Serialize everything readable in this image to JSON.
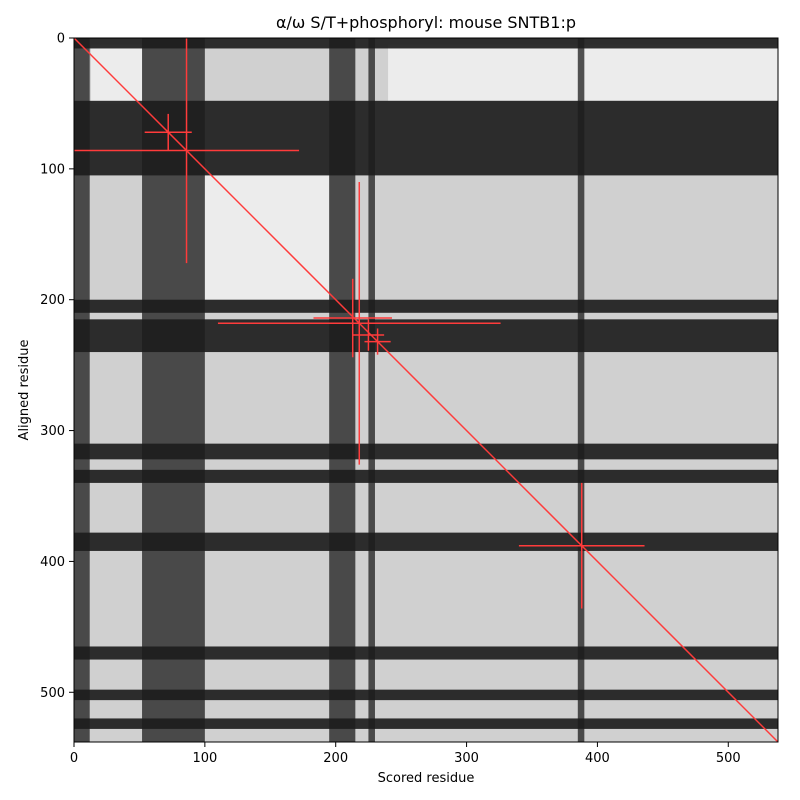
{
  "chart_data": {
    "type": "heatmap",
    "title": "α/ω S/T+phosphoryl: mouse SNTB1:p",
    "xlabel": "Scored residue",
    "ylabel": "Aligned residue",
    "xlim": [
      0,
      538
    ],
    "ylim": [
      538,
      0
    ],
    "x_ticks": [
      0,
      100,
      200,
      300,
      400,
      500
    ],
    "y_ticks": [
      0,
      100,
      200,
      300,
      400,
      500
    ],
    "grid": false,
    "colormap": "grayscale",
    "bands": {
      "dark_columns": [
        [
          0,
          12
        ],
        [
          52,
          100
        ],
        [
          195,
          215
        ],
        [
          225,
          230
        ],
        [
          385,
          390
        ]
      ],
      "dark_rows": [
        [
          0,
          8
        ],
        [
          48,
          105
        ],
        [
          200,
          210
        ],
        [
          215,
          240
        ],
        [
          310,
          322
        ],
        [
          330,
          340
        ],
        [
          378,
          392
        ],
        [
          465,
          475
        ],
        [
          498,
          506
        ],
        [
          520,
          528
        ]
      ],
      "bright_blocks": [
        {
          "x": [
            13,
            52
          ],
          "y": [
            5,
            50
          ]
        },
        {
          "x": [
            100,
            195
          ],
          "y": [
            105,
            200
          ]
        },
        {
          "x": [
            240,
            538
          ],
          "y": [
            5,
            48
          ]
        }
      ]
    },
    "diagonal": {
      "from": [
        0,
        0
      ],
      "to": [
        538,
        538
      ],
      "color": "#ff3b3b"
    },
    "crosses": [
      {
        "x": 72,
        "y": 72,
        "half_len_x": 18,
        "half_len_y": 14
      },
      {
        "x": 86,
        "y": 86,
        "half_len_x": 86,
        "half_len_y": 86
      },
      {
        "x": 218,
        "y": 218,
        "half_len_x": 108,
        "half_len_y": 108
      },
      {
        "x": 213,
        "y": 214,
        "half_len_x": 30,
        "half_len_y": 30
      },
      {
        "x": 225,
        "y": 227,
        "half_len_x": 12,
        "half_len_y": 12
      },
      {
        "x": 232,
        "y": 232,
        "half_len_x": 10,
        "half_len_y": 10
      },
      {
        "x": 388,
        "y": 388,
        "half_len_x": 48,
        "half_len_y": 48
      }
    ],
    "marker_color": "#ff3b3b"
  }
}
